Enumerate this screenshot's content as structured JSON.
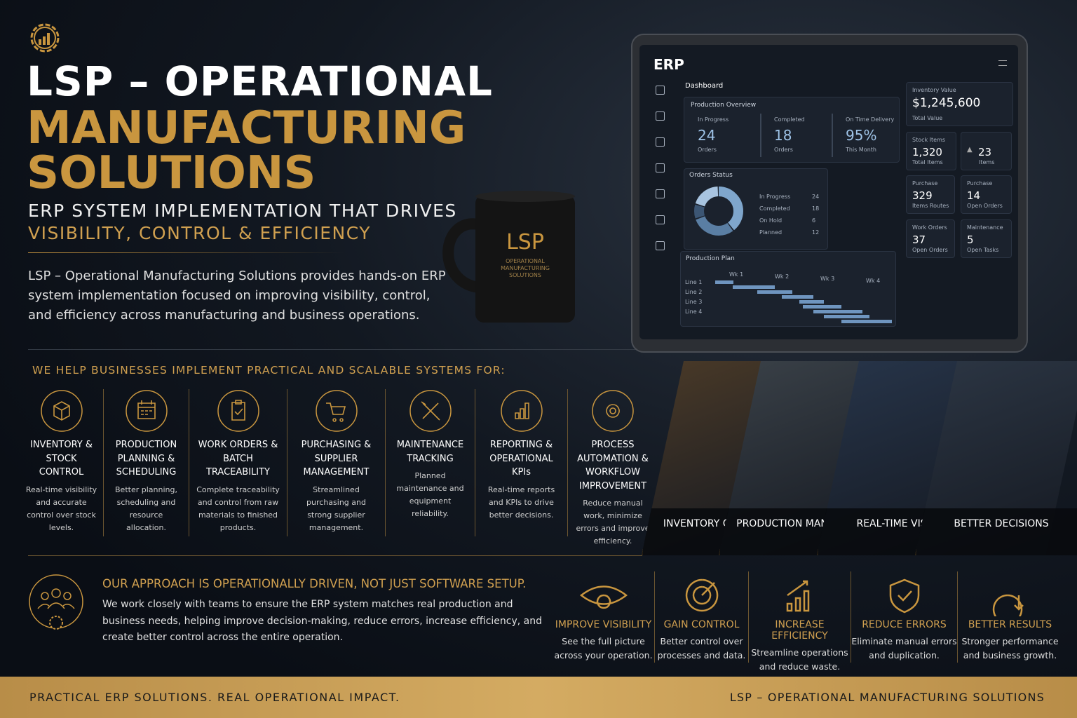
{
  "header": {
    "title_line1": "LSP – OPERATIONAL",
    "title_line2": "MANUFACTURING",
    "title_line3": "SOLUTIONS",
    "subtitle_line1": "ERP SYSTEM IMPLEMENTATION THAT DRIVES",
    "subtitle_line2": "VISIBILITY, CONTROL & EFFICIENCY",
    "description": "LSP – Operational Manufacturing Solutions provides hands-on ERP system implementation focused on improving visibility, control, and efficiency across manufacturing and business operations."
  },
  "mug": {
    "brand": "LSP",
    "text": "OPERATIONAL MANUFACTURING SOLUTIONS"
  },
  "dashboard": {
    "logo": "ERP",
    "section": "Dashboard",
    "overview_title": "Production Overview",
    "overview": [
      {
        "label": "In Progress",
        "value": "24",
        "sub": "Orders"
      },
      {
        "label": "Completed",
        "value": "18",
        "sub": "Orders"
      },
      {
        "label": "On Time Delivery",
        "value": "95%",
        "sub": "This Month"
      }
    ],
    "orders_title": "Orders Status",
    "orders": [
      {
        "label": "In Progress",
        "value": 24
      },
      {
        "label": "Completed",
        "value": 18
      },
      {
        "label": "On Hold",
        "value": 6
      },
      {
        "label": "Planned",
        "value": 12
      }
    ],
    "plan_title": "Production Plan",
    "weeks": [
      "Wk 1",
      "Wk 2",
      "Wk 3",
      "Wk 4"
    ],
    "lines": [
      "Line 1",
      "Line 2",
      "Line 3",
      "Line 4"
    ],
    "kpis": [
      {
        "label": "Inventory Value",
        "value": "$1,245,600",
        "sub": "Total Value"
      },
      {
        "label": "Stock Items",
        "value": "1,320",
        "sub": "Total Items"
      },
      {
        "label": "",
        "value": "23",
        "sub": "Items"
      },
      {
        "label": "Purchase",
        "value": "329",
        "sub": "Items Routes"
      },
      {
        "label": "Purchase",
        "value": "14",
        "sub": "Open Orders"
      },
      {
        "label": "Work Orders",
        "value": "37",
        "sub": "Open Orders"
      },
      {
        "label": "Maintenance",
        "value": "5",
        "sub": "Open Tasks"
      }
    ]
  },
  "services": {
    "heading": "WE HELP BUSINESSES IMPLEMENT PRACTICAL AND SCALABLE SYSTEMS FOR:",
    "items": [
      {
        "title": "INVENTORY & STOCK CONTROL",
        "desc": "Real-time visibility and accurate control over stock levels."
      },
      {
        "title": "PRODUCTION PLANNING & SCHEDULING",
        "desc": "Better planning, scheduling and resource allocation."
      },
      {
        "title": "WORK ORDERS & BATCH TRACEABILITY",
        "desc": "Complete traceability and control from raw materials to finished products."
      },
      {
        "title": "PURCHASING & SUPPLIER MANAGEMENT",
        "desc": "Streamlined purchasing and strong supplier management."
      },
      {
        "title": "MAINTENANCE TRACKING",
        "desc": "Planned maintenance and equipment reliability."
      },
      {
        "title": "REPORTING & OPERATIONAL KPIs",
        "desc": "Real-time reports and KPIs to drive better decisions."
      },
      {
        "title": "PROCESS AUTOMATION & WORKFLOW IMPROVEMENT",
        "desc": "Reduce manual work, minimize errors and improve efficiency."
      }
    ]
  },
  "panels": [
    "INVENTORY CONTROL",
    "PRODUCTION MANAGEMENT",
    "REAL-TIME VISIBILITY",
    "BETTER DECISIONS"
  ],
  "approach": {
    "heading": "OUR APPROACH IS OPERATIONALLY DRIVEN, NOT JUST SOFTWARE SETUP.",
    "text": "We work closely with teams to ensure the ERP system matches real production and business needs, helping improve decision-making, reduce errors, increase efficiency, and create better control across the entire operation."
  },
  "benefits": [
    {
      "title": "IMPROVE VISIBILITY",
      "desc": "See the full picture across your operation."
    },
    {
      "title": "GAIN CONTROL",
      "desc": "Better control over processes and data."
    },
    {
      "title": "INCREASE EFFICIENCY",
      "desc": "Streamline operations and reduce waste."
    },
    {
      "title": "REDUCE ERRORS",
      "desc": "Eliminate manual errors and duplication."
    },
    {
      "title": "BETTER RESULTS",
      "desc": "Stronger performance and business growth."
    }
  ],
  "footer": {
    "left": "PRACTICAL ERP SOLUTIONS. REAL OPERATIONAL IMPACT.",
    "right": "LSP – OPERATIONAL MANUFACTURING SOLUTIONS"
  }
}
